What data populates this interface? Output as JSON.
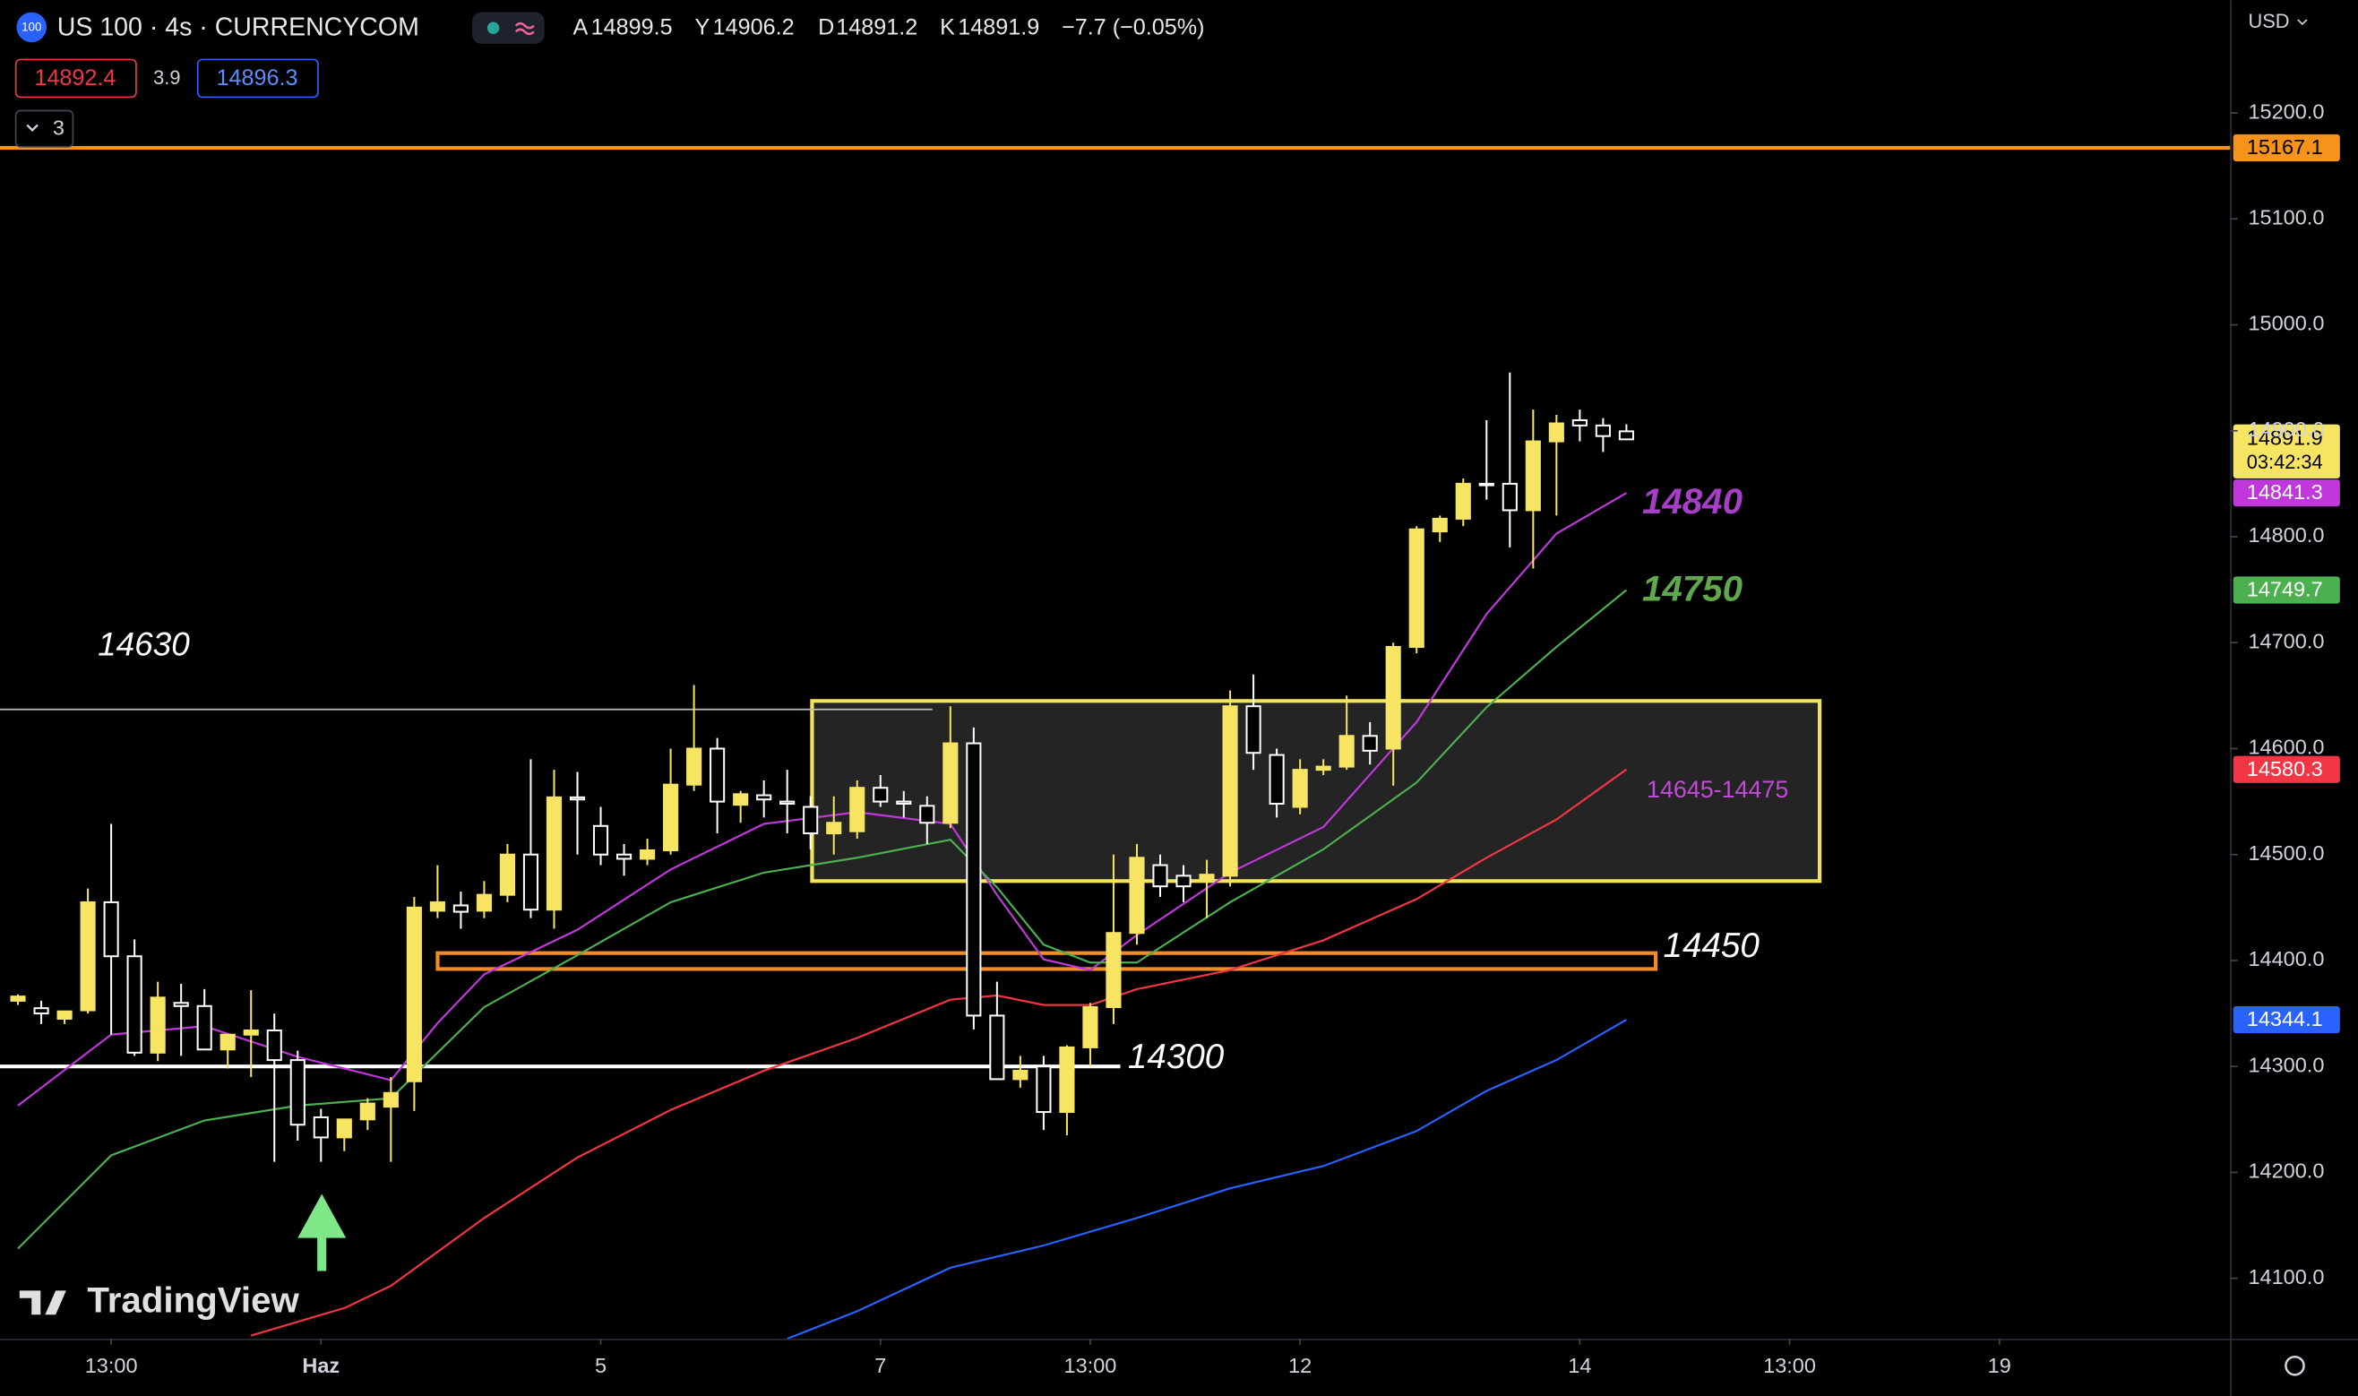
{
  "header": {
    "badge": "100",
    "symbol": "US 100 · 4s · CURRENCYCOM",
    "ohlc": [
      {
        "key": "A",
        "value": "14899.5"
      },
      {
        "key": "Y",
        "value": "14906.2"
      },
      {
        "key": "D",
        "value": "14891.2"
      },
      {
        "key": "K",
        "value": "14891.9"
      }
    ],
    "change": "−7.7 (−0.05%)",
    "sell": "14892.4",
    "spread": "3.9",
    "buy": "14896.3",
    "indicators_count": "3",
    "currency": "USD",
    "watermark": "TradingView"
  },
  "chart_data": {
    "type": "candlestick",
    "up_color": "#f7e463",
    "down_color": "#ffffff",
    "open": [
      14362,
      14355,
      14345,
      14353,
      14455,
      14404,
      14313,
      14360,
      14357,
      14316,
      14330,
      14334,
      14306,
      14252,
      14233,
      14250,
      14262,
      14286,
      14447,
      14452,
      14447,
      14462,
      14500,
      14448,
      14554,
      14527,
      14500,
      14496,
      14504,
      14566,
      14600,
      14547,
      14556,
      14550,
      14545,
      14520,
      14522,
      14563,
      14550,
      14546,
      14530,
      14605,
      14348,
      14288,
      14300,
      14257,
      14318,
      14356,
      14426,
      14490,
      14480,
      14477,
      14480,
      14640,
      14594,
      14545,
      14580,
      14583,
      14612,
      14600,
      14696,
      14805,
      14817,
      14850,
      14850,
      14825,
      14890,
      14910,
      14905,
      14899.5
    ],
    "high": [
      14368,
      14362,
      14352,
      14468,
      14529,
      14420,
      14380,
      14378,
      14373,
      14330,
      14372,
      14350,
      14315,
      14260,
      14250,
      14270,
      14290,
      14460,
      14490,
      14465,
      14475,
      14510,
      14590,
      14580,
      14578,
      14545,
      14510,
      14515,
      14600,
      14660,
      14610,
      14560,
      14570,
      14580,
      14555,
      14555,
      14570,
      14575,
      14560,
      14555,
      14640,
      14620,
      14380,
      14310,
      14310,
      14320,
      14360,
      14500,
      14510,
      14500,
      14490,
      14495,
      14655,
      14670,
      14600,
      14590,
      14590,
      14650,
      14625,
      14700,
      14810,
      14820,
      14855,
      14910,
      14955,
      14920,
      14915,
      14920,
      14912,
      14906.2
    ],
    "low": [
      14358,
      14340,
      14340,
      14350,
      14330,
      14310,
      14305,
      14310,
      14320,
      14298,
      14290,
      14210,
      14230,
      14210,
      14220,
      14240,
      14210,
      14258,
      14440,
      14430,
      14440,
      14455,
      14440,
      14430,
      14500,
      14490,
      14480,
      14490,
      14500,
      14560,
      14520,
      14530,
      14535,
      14520,
      14505,
      14500,
      14515,
      14545,
      14535,
      14510,
      14525,
      14335,
      14290,
      14280,
      14240,
      14235,
      14300,
      14340,
      14415,
      14460,
      14455,
      14440,
      14470,
      14580,
      14535,
      14538,
      14575,
      14580,
      14585,
      14565,
      14690,
      14795,
      14810,
      14835,
      14790,
      14770,
      14820,
      14890,
      14880,
      14891.2
    ],
    "close": [
      14366,
      14350,
      14352,
      14455,
      14404,
      14313,
      14365,
      14357,
      14316,
      14330,
      14334,
      14306,
      14245,
      14233,
      14250,
      14265,
      14275,
      14450,
      14455,
      14446,
      14462,
      14500,
      14448,
      14554,
      14552,
      14500,
      14496,
      14504,
      14566,
      14600,
      14550,
      14557,
      14552,
      14548,
      14520,
      14530,
      14563,
      14550,
      14548,
      14530,
      14605,
      14348,
      14288,
      14296,
      14257,
      14318,
      14356,
      14426,
      14497,
      14470,
      14470,
      14481,
      14640,
      14596,
      14548,
      14580,
      14583,
      14612,
      14598,
      14696,
      14807,
      14817,
      14850,
      14849,
      14825,
      14890,
      14907,
      14905,
      14895,
      14891.9
    ],
    "countdown": "03:42:34",
    "series": [
      {
        "color": "#c038db",
        "x": [
          0,
          4,
          8,
          12,
          16,
          18,
          20,
          24,
          28,
          32,
          36,
          40,
          42,
          44,
          46,
          48,
          52,
          56,
          60,
          63,
          66,
          69
        ],
        "values": [
          14263,
          14330,
          14338,
          14309,
          14287,
          14341,
          14387,
          14429,
          14486,
          14529,
          14540,
          14529,
          14462,
          14401,
          14391,
          14424,
          14483,
          14526,
          14625,
          14727,
          14803,
          14841.3
        ]
      },
      {
        "color": "#4caf50",
        "x": [
          0,
          4,
          8,
          12,
          16,
          18,
          20,
          24,
          28,
          32,
          36,
          40,
          42,
          44,
          46,
          48,
          52,
          56,
          60,
          63,
          66,
          69
        ],
        "values": [
          14128,
          14216,
          14249,
          14263,
          14270,
          14313,
          14356,
          14405,
          14455,
          14483,
          14497,
          14514,
          14469,
          14415,
          14398,
          14398,
          14455,
          14505,
          14568,
          14639,
          14696,
          14749.7
        ]
      },
      {
        "color": "#f23645",
        "x": [
          10,
          14,
          16,
          20,
          24,
          28,
          32,
          36,
          40,
          42,
          44,
          46,
          48,
          52,
          56,
          60,
          63,
          66,
          69
        ],
        "values": [
          14046,
          14072,
          14093,
          14157,
          14214,
          14259,
          14296,
          14327,
          14363,
          14367,
          14358,
          14358,
          14373,
          14391,
          14419,
          14458,
          14497,
          14533,
          14580.3
        ]
      },
      {
        "color": "#2962ff",
        "x": [
          33,
          36,
          40,
          44,
          48,
          52,
          56,
          60,
          63,
          66,
          69
        ],
        "values": [
          14043,
          14069,
          14110,
          14131,
          14157,
          14185,
          14206,
          14239,
          14277,
          14306,
          14344.1
        ]
      }
    ],
    "hlines": [
      {
        "value": 15167.1,
        "color": "#f7931a"
      },
      {
        "value": 14300,
        "color": "#ffffff"
      },
      {
        "value": 14637,
        "color": "#bdbdbd"
      }
    ],
    "zones": [
      {
        "top": 14645,
        "bottom": 14475,
        "color": "#f2e35b",
        "fill": "#242424",
        "label": "14645-14475",
        "label_color": "#c04bd6"
      },
      {
        "top": 14407,
        "bottom": 14392,
        "color": "#f28c28"
      }
    ],
    "annotations": [
      {
        "text": "14630",
        "color": "#ffffff"
      },
      {
        "text": "14840",
        "color": "#a63fc6"
      },
      {
        "text": "14750",
        "color": "#5fa84b"
      },
      {
        "text": "14450",
        "color": "#ffffff"
      },
      {
        "text": "14300",
        "color": "#ffffff"
      }
    ],
    "xlim": [
      -0.77,
      94.9
    ],
    "ylim": [
      14043,
      15306.5
    ],
    "xticks": [
      {
        "value": 4,
        "label": "13:00"
      },
      {
        "value": 13,
        "label": "Haz"
      },
      {
        "value": 25,
        "label": "5"
      },
      {
        "value": 37,
        "label": "7"
      },
      {
        "value": 46,
        "label": "13:00"
      },
      {
        "value": 55,
        "label": "12"
      },
      {
        "value": 67,
        "label": "14"
      },
      {
        "value": 76,
        "label": "13:00"
      },
      {
        "value": 85,
        "label": "19"
      }
    ],
    "yticks": [
      {
        "value": 14100,
        "label": "14100.0"
      },
      {
        "value": 14200,
        "label": "14200.0"
      },
      {
        "value": 14300,
        "label": "14300.0"
      },
      {
        "value": 14400,
        "label": "14400.0"
      },
      {
        "value": 14500,
        "label": "14500.0"
      },
      {
        "value": 14600,
        "label": "14600.0"
      },
      {
        "value": 14700,
        "label": "14700.0"
      },
      {
        "value": 14800,
        "label": "14800.0"
      },
      {
        "value": 14900,
        "label": "14900.0"
      },
      {
        "value": 15000,
        "label": "15000.0"
      },
      {
        "value": 15100,
        "label": "15100.0"
      },
      {
        "value": 15200,
        "label": "15200.0"
      }
    ]
  }
}
